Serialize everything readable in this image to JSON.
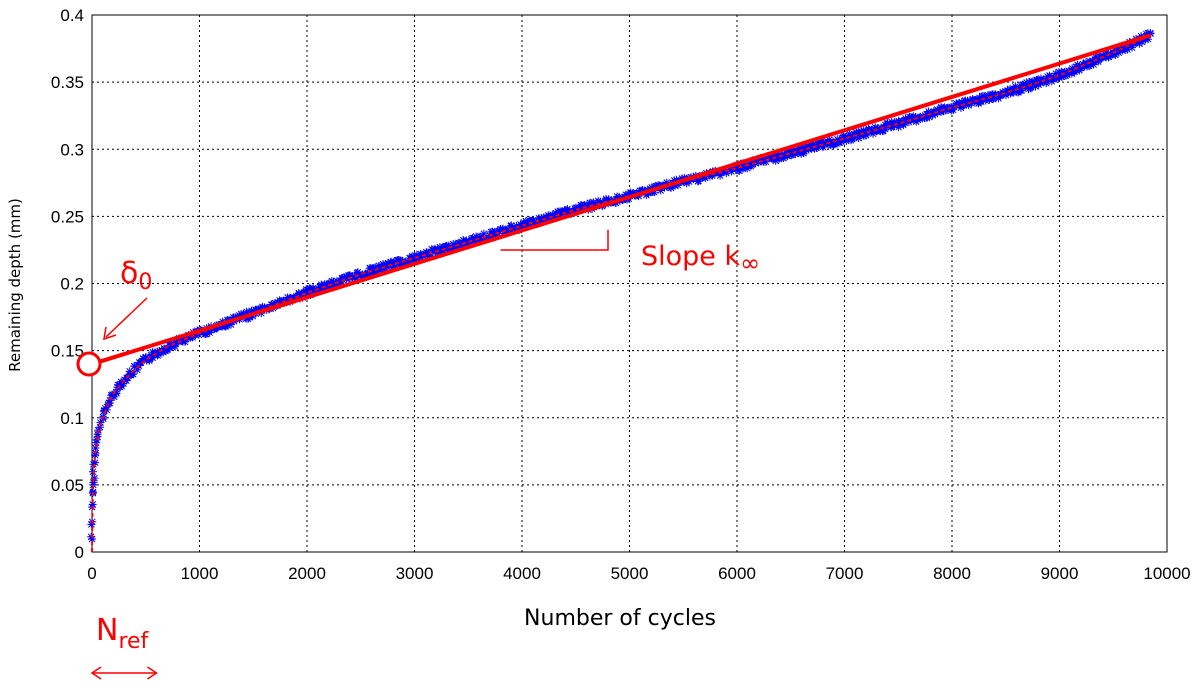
{
  "chart_data": {
    "type": "scatter",
    "xlabel": "Number of cycles",
    "ylabel": "Remaining depth (mm)",
    "xlim": [
      0,
      10000
    ],
    "ylim": [
      0,
      0.4
    ],
    "x_ticks": [
      0,
      1000,
      2000,
      3000,
      4000,
      5000,
      6000,
      7000,
      8000,
      9000,
      10000
    ],
    "x_tick_labels": [
      "0",
      "1000",
      "2000",
      "3000",
      "4000",
      "5000",
      "6000",
      "7000",
      "8000",
      "9000",
      "10000"
    ],
    "y_ticks": [
      0,
      0.05,
      0.1,
      0.15,
      0.2,
      0.25,
      0.3,
      0.35,
      0.4
    ],
    "y_tick_labels": [
      "0",
      "0.05",
      "0.1",
      "0.15",
      "0.2",
      "0.25",
      "0.3",
      "0.35",
      "0.4"
    ],
    "grid": true,
    "series": [
      {
        "marker": "*",
        "color": "#0000ff",
        "x": [
          0,
          5,
          10,
          20,
          40,
          60,
          100,
          150,
          200,
          300,
          400,
          500,
          700,
          1000,
          1500,
          2000,
          2500,
          3000,
          3500,
          4000,
          4500,
          5000,
          5500,
          6000,
          6500,
          7000,
          7500,
          8000,
          8500,
          9000,
          9500,
          9850
        ],
        "y": [
          0.01,
          0.035,
          0.05,
          0.065,
          0.08,
          0.09,
          0.1,
          0.11,
          0.118,
          0.128,
          0.136,
          0.143,
          0.153,
          0.163,
          0.178,
          0.193,
          0.207,
          0.219,
          0.231,
          0.243,
          0.255,
          0.265,
          0.276,
          0.286,
          0.297,
          0.308,
          0.319,
          0.331,
          0.342,
          0.355,
          0.372,
          0.385
        ]
      }
    ],
    "fit_curve": {
      "color": "#ff0000",
      "x": [
        0,
        5,
        10,
        20,
        40,
        60,
        100,
        150,
        200,
        300,
        400,
        500,
        700,
        1000,
        1500,
        2000,
        2500,
        3000,
        3500,
        4000,
        4500,
        5000,
        5500,
        6000,
        6500,
        7000,
        7500,
        8000,
        8500,
        9000,
        9500,
        9850
      ],
      "y": [
        0.0,
        0.035,
        0.05,
        0.065,
        0.08,
        0.09,
        0.1,
        0.11,
        0.118,
        0.128,
        0.136,
        0.143,
        0.153,
        0.163,
        0.178,
        0.193,
        0.207,
        0.219,
        0.231,
        0.243,
        0.255,
        0.265,
        0.276,
        0.286,
        0.297,
        0.308,
        0.319,
        0.331,
        0.342,
        0.355,
        0.372,
        0.385
      ]
    },
    "asymptote": {
      "color": "#ff0000",
      "x": [
        0,
        9850
      ],
      "y": [
        0.14,
        0.385
      ]
    },
    "annotations": {
      "delta_symbol": "δ",
      "delta_sub": "0",
      "slope_main": "Slope k",
      "slope_sub": "∞",
      "nref_main": "N",
      "nref_sub": "ref"
    },
    "slope_marker": {
      "x1": 3800,
      "x2": 4800,
      "y": 0.225,
      "y_top": 0.24
    },
    "delta_value": 0.14,
    "nref_range": [
      0,
      600
    ]
  }
}
